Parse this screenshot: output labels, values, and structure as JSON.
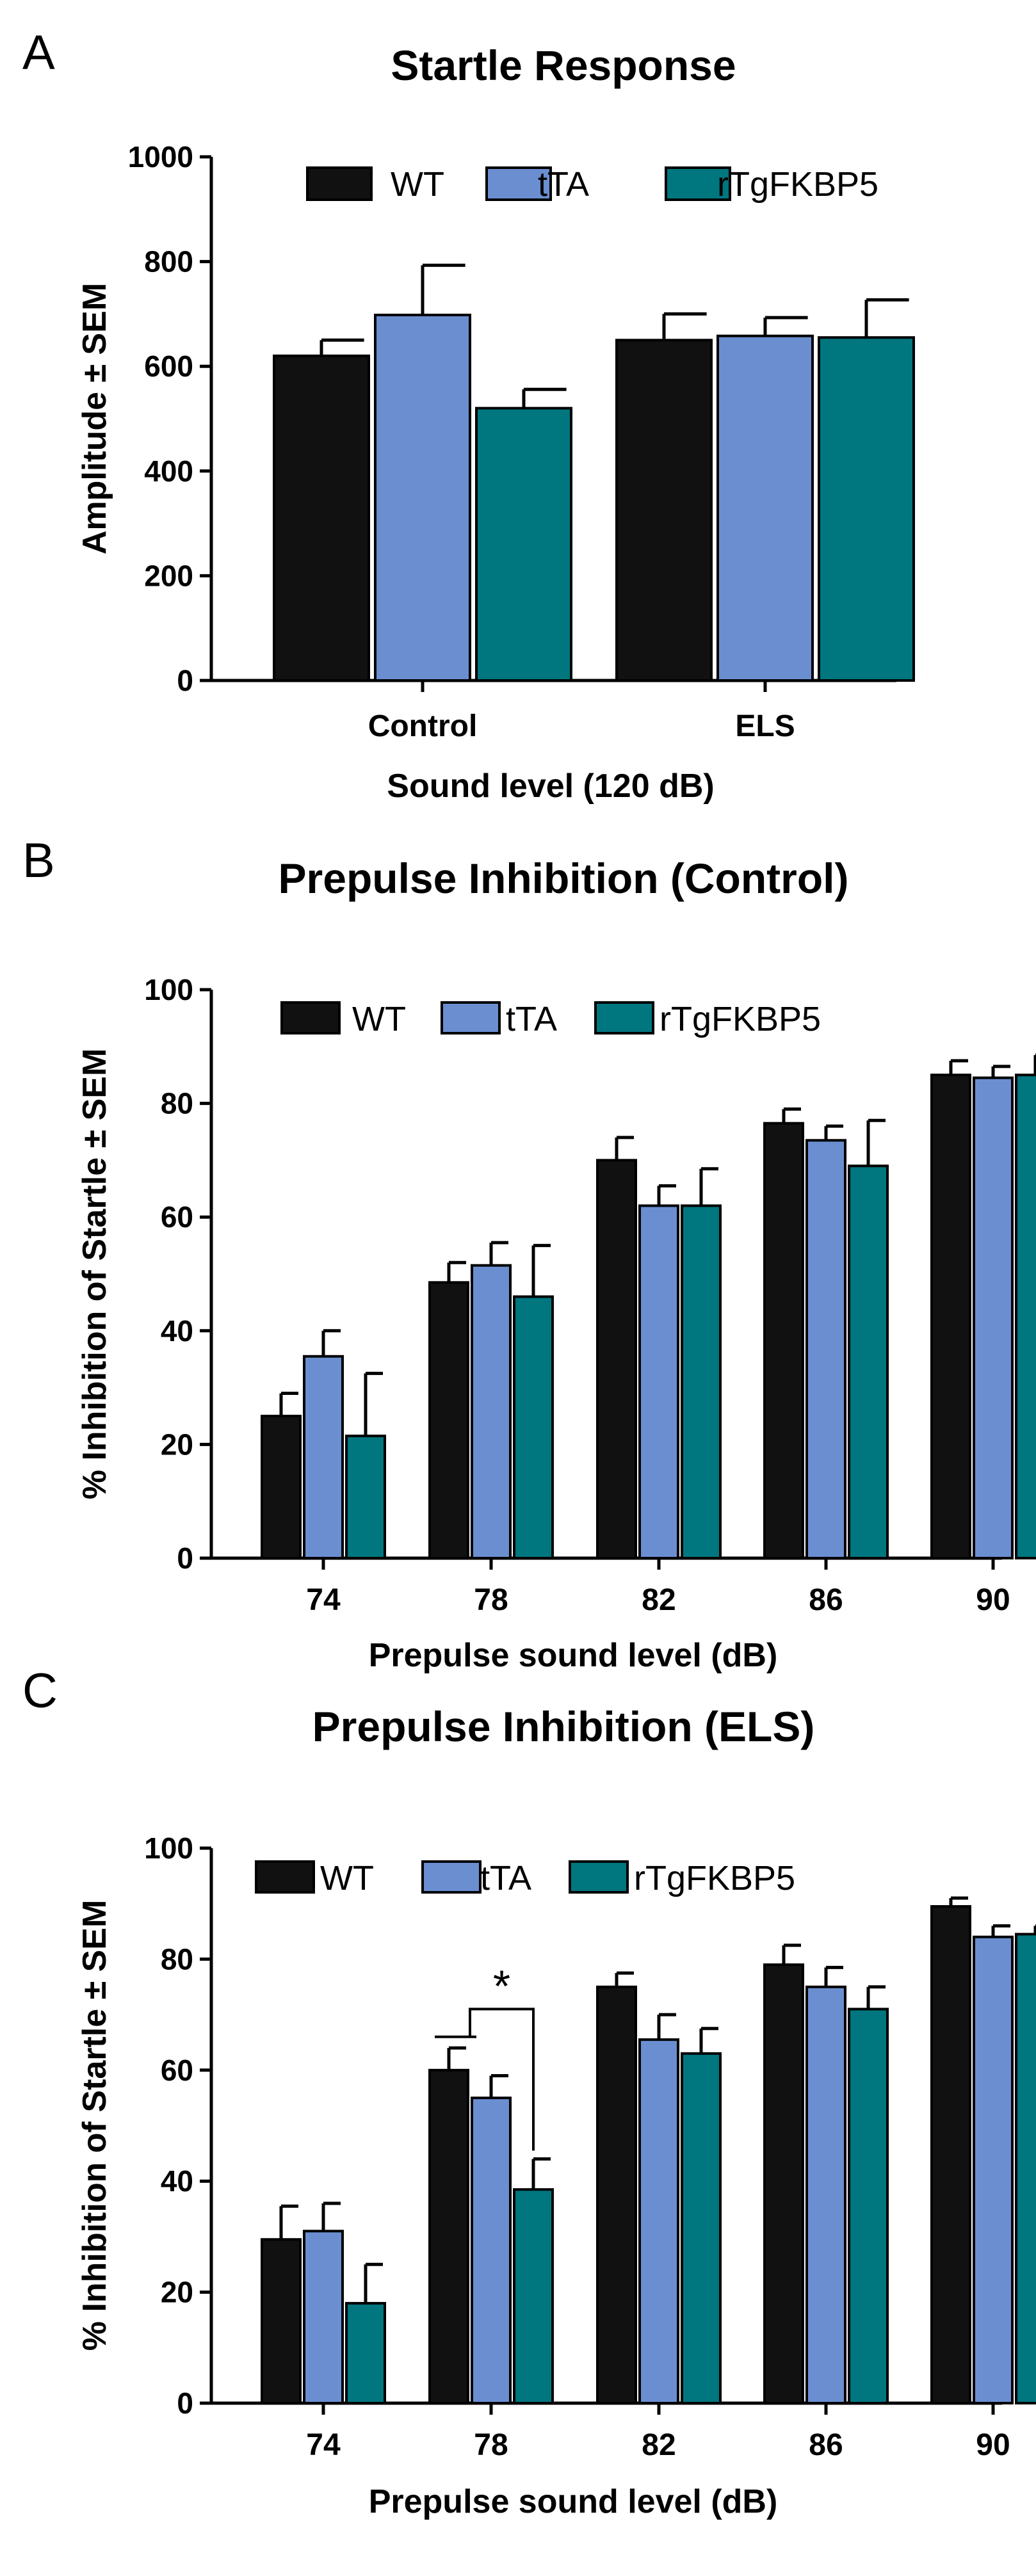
{
  "chart_data": [
    {
      "type": "bar",
      "panel": "A",
      "title": "Startle Response",
      "ylabel": "Amplitude ± SEM",
      "xlabel": "Sound level (120 dB)",
      "ylim": [
        0,
        1000
      ],
      "yticks": [
        0,
        200,
        400,
        600,
        800,
        1000
      ],
      "categories": [
        "Control",
        "ELS"
      ],
      "legend": [
        "WT",
        "tTA",
        "rTgFKBP5"
      ],
      "legend_position": "top",
      "series": [
        {
          "name": "WT",
          "color": "#111111",
          "values": [
            620,
            650
          ],
          "errors": [
            30,
            50
          ]
        },
        {
          "name": "tTA",
          "color": "#6a8ed0",
          "values": [
            698,
            658
          ],
          "errors": [
            95,
            35
          ]
        },
        {
          "name": "rTgFKBP5",
          "color": "#00767f",
          "values": [
            520,
            655
          ],
          "errors": [
            36,
            72
          ]
        }
      ]
    },
    {
      "type": "bar",
      "panel": "B",
      "title": "Prepulse Inhibition (Control)",
      "ylabel": "% Inhibition of Startle ± SEM",
      "xlabel": "Prepulse sound level (dB)",
      "ylim": [
        0,
        100
      ],
      "yticks": [
        0,
        20,
        40,
        60,
        80,
        100
      ],
      "categories": [
        "74",
        "78",
        "82",
        "86",
        "90"
      ],
      "legend": [
        "WT",
        "tTA",
        "rTgFKBP5"
      ],
      "legend_position": "top",
      "series": [
        {
          "name": "WT",
          "color": "#111111",
          "values": [
            25,
            48.5,
            70,
            76.5,
            85
          ],
          "errors": [
            4,
            3.5,
            4,
            2.5,
            2.5
          ]
        },
        {
          "name": "tTA",
          "color": "#6a8ed0",
          "values": [
            35.5,
            51.5,
            62,
            73.5,
            84.5
          ],
          "errors": [
            4.5,
            4,
            3.5,
            2.5,
            2
          ]
        },
        {
          "name": "rTgFKBP5",
          "color": "#00767f",
          "values": [
            21.5,
            46,
            62,
            69,
            85
          ],
          "errors": [
            11,
            9,
            6.5,
            8,
            3.5
          ]
        }
      ]
    },
    {
      "type": "bar",
      "panel": "C",
      "title": "Prepulse Inhibition (ELS)",
      "ylabel": "% Inhibition of Startle ± SEM",
      "xlabel": "Prepulse sound level (dB)",
      "ylim": [
        0,
        100
      ],
      "yticks": [
        0,
        20,
        40,
        60,
        80,
        100
      ],
      "categories": [
        "74",
        "78",
        "82",
        "86",
        "90"
      ],
      "legend": [
        "WT",
        "tTA",
        "rTgFKBP5"
      ],
      "legend_position": "top",
      "annotation": {
        "text": "*",
        "category": "78"
      },
      "series": [
        {
          "name": "WT",
          "color": "#111111",
          "values": [
            29.5,
            60,
            75,
            79,
            89.5
          ],
          "errors": [
            6,
            4,
            2.5,
            3.5,
            1.5
          ]
        },
        {
          "name": "tTA",
          "color": "#6a8ed0",
          "values": [
            31,
            55,
            65.5,
            75,
            84
          ],
          "errors": [
            5,
            4,
            4.5,
            3.5,
            2
          ]
        },
        {
          "name": "rTgFKBP5",
          "color": "#00767f",
          "values": [
            18,
            38.5,
            63,
            71,
            84.5
          ],
          "errors": [
            7,
            5.5,
            4.5,
            4,
            1.5
          ]
        }
      ]
    }
  ]
}
